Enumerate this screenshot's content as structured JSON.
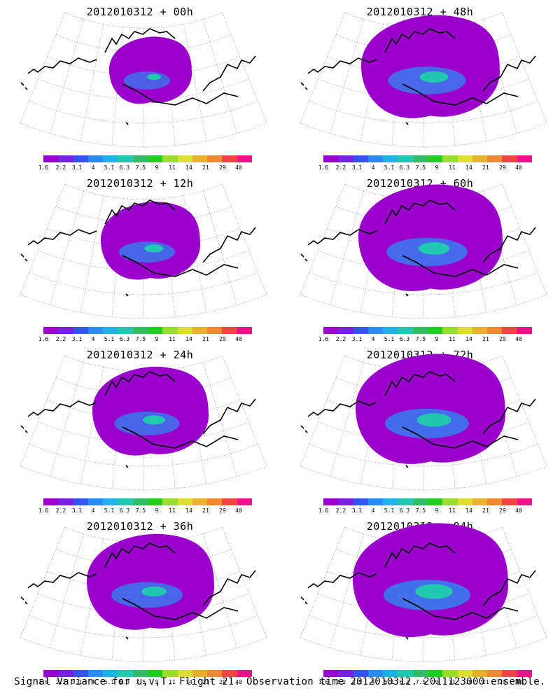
{
  "panels": [
    {
      "title": "2012010312 + 00h",
      "coverage": 0.3,
      "intensity": 0.2
    },
    {
      "title": "2012010312 + 48h",
      "coverage": 0.8,
      "intensity": 0.35
    },
    {
      "title": "2012010312 + 12h",
      "coverage": 0.45,
      "intensity": 0.3
    },
    {
      "title": "2012010312 + 60h",
      "coverage": 0.85,
      "intensity": 0.4
    },
    {
      "title": "2012010312 + 24h",
      "coverage": 0.6,
      "intensity": 0.3
    },
    {
      "title": "2012010312 + 72h",
      "coverage": 0.9,
      "intensity": 0.45
    },
    {
      "title": "2012010312 + 36h",
      "coverage": 0.7,
      "intensity": 0.32
    },
    {
      "title": "2012010312 + 84h",
      "coverage": 0.95,
      "intensity": 0.5
    }
  ],
  "colorbar": {
    "ticks": [
      "1.6",
      "2.2",
      "3.1",
      "4",
      "5.1",
      "6.3",
      "7.5",
      "9",
      "11",
      "14",
      "21",
      "29",
      "40"
    ],
    "colors": [
      "#9900cc",
      "#7a20e0",
      "#3355ee",
      "#2a8cf0",
      "#22b0e8",
      "#22c8b0",
      "#33bb66",
      "#22cc22",
      "#99dd33",
      "#dddd33",
      "#e8b030",
      "#ee8833",
      "#ee4444",
      "#ee1188"
    ]
  },
  "caption": "Signal Variance for u,v,T. Flight 21. Observation time 2012010312. 2011123000 ensemble."
}
